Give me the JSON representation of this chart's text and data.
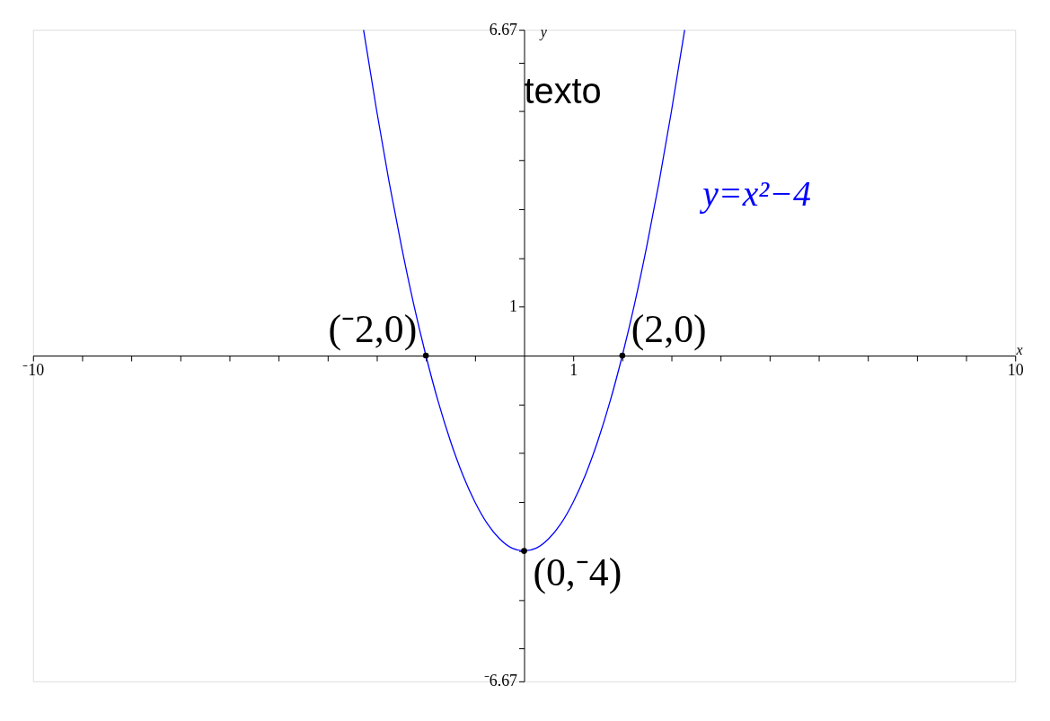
{
  "chart_data": {
    "type": "line",
    "xlim": [
      -10,
      10
    ],
    "ylim": [
      -6.67,
      6.67
    ],
    "xticks": [
      {
        "value": -10,
        "label": "⁻10"
      },
      {
        "value": -9,
        "label": null
      },
      {
        "value": -8,
        "label": null
      },
      {
        "value": -7,
        "label": null
      },
      {
        "value": -6,
        "label": null
      },
      {
        "value": -5,
        "label": null
      },
      {
        "value": -4,
        "label": null
      },
      {
        "value": -3,
        "label": null
      },
      {
        "value": -2,
        "label": null
      },
      {
        "value": -1,
        "label": null
      },
      {
        "value": 1,
        "label": "1"
      },
      {
        "value": 2,
        "label": null
      },
      {
        "value": 3,
        "label": null
      },
      {
        "value": 4,
        "label": null
      },
      {
        "value": 5,
        "label": null
      },
      {
        "value": 6,
        "label": null
      },
      {
        "value": 7,
        "label": null
      },
      {
        "value": 8,
        "label": null
      },
      {
        "value": 9,
        "label": null
      },
      {
        "value": 10,
        "label": "10"
      }
    ],
    "yticks": [
      {
        "value": -6.67,
        "label": "⁻6.67"
      },
      {
        "value": -6,
        "label": null
      },
      {
        "value": -5,
        "label": null
      },
      {
        "value": -4,
        "label": null
      },
      {
        "value": -3,
        "label": null
      },
      {
        "value": -2,
        "label": null
      },
      {
        "value": -1,
        "label": null
      },
      1,
      {
        "value": 2,
        "label": null
      },
      {
        "value": 3,
        "label": null
      },
      {
        "value": 4,
        "label": null
      },
      {
        "value": 5,
        "label": null
      },
      {
        "value": 6,
        "label": null
      },
      6.67
    ],
    "xlabel": "x",
    "ylabel": "y",
    "grid": false,
    "legend": false,
    "series": [
      {
        "name": "y=x²−4",
        "color": "#0000ff",
        "x": [
          -3.27,
          -3,
          -2.75,
          -2.5,
          -2.25,
          -2,
          -1.75,
          -1.5,
          -1.25,
          -1,
          -0.75,
          -0.5,
          -0.25,
          0,
          0.25,
          0.5,
          0.75,
          1,
          1.25,
          1.5,
          1.75,
          2,
          2.25,
          2.5,
          2.75,
          3,
          3.27
        ],
        "values": [
          6.67,
          5,
          3.56,
          2.25,
          1.06,
          0,
          -0.94,
          -1.75,
          -2.44,
          -3,
          -3.44,
          -3.75,
          -3.94,
          -4,
          -3.94,
          -3.75,
          -3.44,
          -3,
          -2.44,
          -1.75,
          -0.94,
          0,
          1.06,
          2.25,
          3.56,
          5,
          6.67
        ]
      },
      {
        "type": "scatter",
        "color": "#000000",
        "marker": "circle",
        "x": [
          -2,
          2,
          0
        ],
        "values": [
          0,
          0,
          -4
        ]
      }
    ],
    "annotations": [
      "texto",
      {
        "text": "(⁻2,0)",
        "x": -2,
        "y": 0
      },
      {
        "text": "(2,0)",
        "x": 2,
        "y": 0
      },
      {
        "text": "(0,⁻4)",
        "x": 0,
        "y": -4
      }
    ]
  }
}
